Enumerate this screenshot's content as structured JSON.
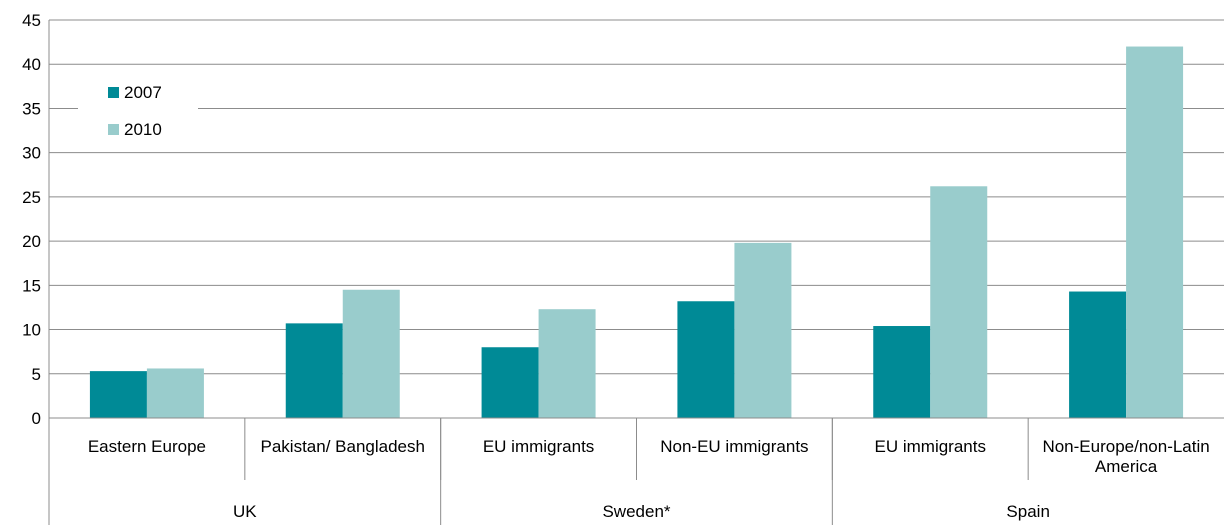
{
  "chart_data": {
    "type": "bar",
    "groups": [
      {
        "name": "UK",
        "categories": [
          "Eastern Europe",
          "Pakistan/ Bangladesh"
        ]
      },
      {
        "name": "Sweden*",
        "categories": [
          "EU immigrants",
          "Non-EU immigrants"
        ]
      },
      {
        "name": "Spain",
        "categories": [
          "EU immigrants",
          "Non-Europe/non-Latin America"
        ]
      }
    ],
    "categories": [
      "Eastern Europe",
      "Pakistan/ Bangladesh",
      "EU immigrants",
      "Non-EU immigrants",
      "EU immigrants",
      "Non-Europe/non-Latin America"
    ],
    "series": [
      {
        "name": "2007",
        "color": "#008a96",
        "values": [
          5.3,
          10.7,
          8.0,
          13.2,
          10.4,
          14.3
        ]
      },
      {
        "name": "2010",
        "color": "#99cccc",
        "values": [
          5.6,
          14.5,
          12.3,
          19.8,
          26.2,
          42.0
        ]
      }
    ],
    "ylim": [
      0,
      45
    ],
    "yticks": [
      0,
      5,
      10,
      15,
      20,
      25,
      30,
      35,
      40,
      45
    ],
    "grid": true,
    "legend_position": "top-left",
    "title": "",
    "xlabel": "",
    "ylabel": ""
  }
}
